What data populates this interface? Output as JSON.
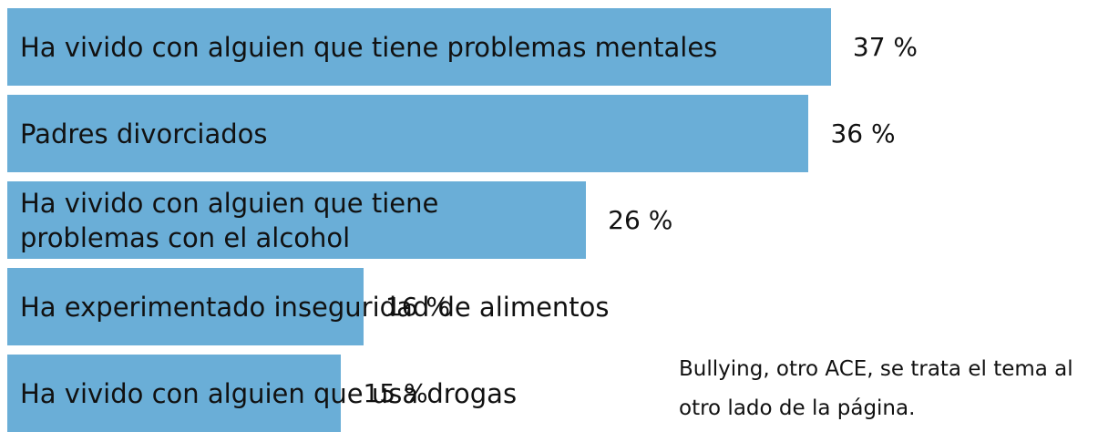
{
  "chart_data": {
    "type": "bar",
    "orientation": "horizontal",
    "categories": [
      "Ha vivido con alguien que tiene problemas mentales",
      "Padres divorciados",
      "Ha vivido con alguien que tiene problemas con el alcohol",
      "Ha experimentado inseguridad de alimentos",
      "Ha vivido con alguien que usa drogas"
    ],
    "values": [
      37,
      36,
      26,
      16,
      15
    ],
    "value_labels": [
      "37 %",
      "36 %",
      "26 %",
      "16 %",
      "15 %"
    ],
    "color": "#6aaed7",
    "annotation": "Bullying, otro ACE, se trata el tema al otro lado de la página."
  }
}
